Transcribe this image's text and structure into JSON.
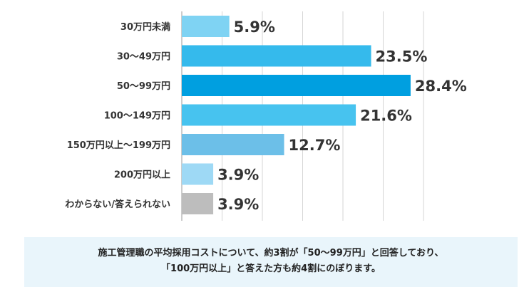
{
  "chart_data": {
    "type": "bar",
    "orientation": "horizontal",
    "categories": [
      "30万円未満",
      "30～49万円",
      "50～99万円",
      "100～149万円",
      "150万円以上～199万円",
      "200万円以上",
      "わからない/答えられない"
    ],
    "values": [
      5.9,
      23.5,
      28.4,
      21.6,
      12.7,
      3.9,
      3.9
    ],
    "value_labels": [
      "5.9%",
      "23.5%",
      "28.4%",
      "21.6%",
      "12.7%",
      "3.9%",
      "3.9%"
    ],
    "colors": [
      "#7fd3f3",
      "#35baec",
      "#009fe0",
      "#47c3ef",
      "#6cbfe8",
      "#9ed9f5",
      "#bdbdbd"
    ],
    "xlim": [
      0,
      30
    ],
    "grid": true,
    "legend": "none"
  },
  "caption": {
    "line1": "施工管理職の平均採用コストについて、約3割が「50～99万円」と回答しており、",
    "line2": "「100万円以上」と答えた方も約4割にのぼります。"
  }
}
